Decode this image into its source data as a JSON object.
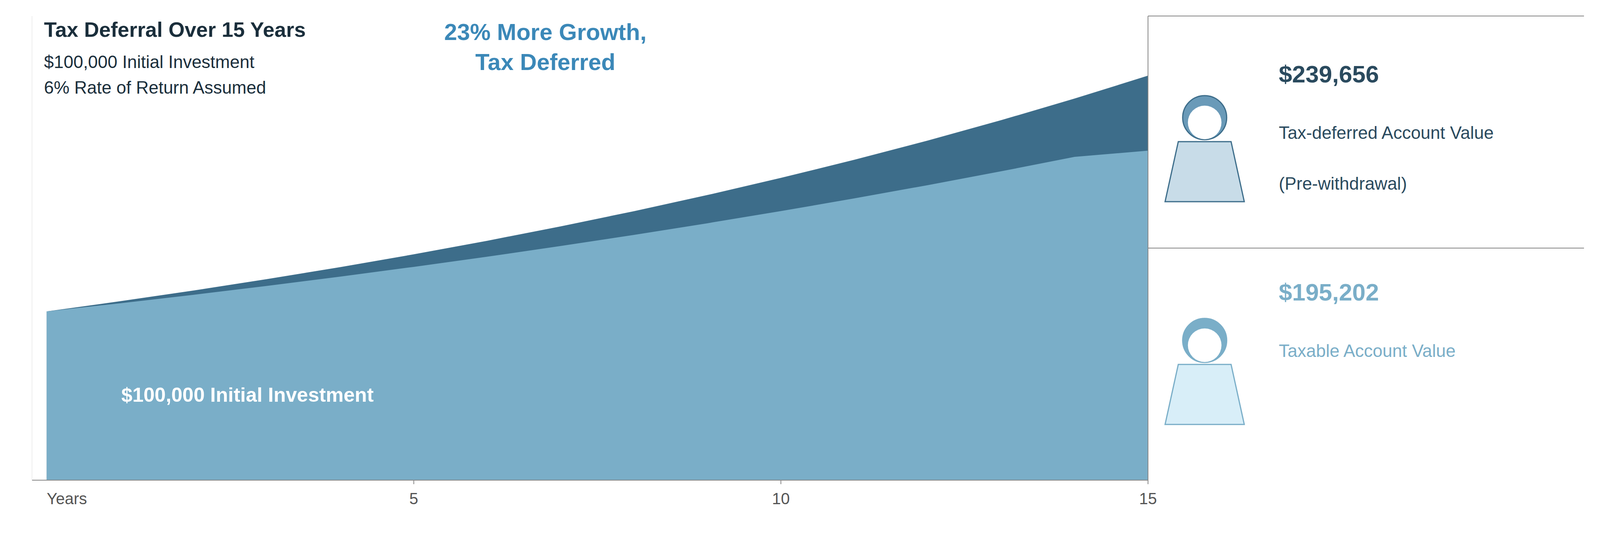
{
  "chart_data": {
    "type": "area",
    "title": "Tax Deferral Over 15 Years",
    "subtitle": [
      "$100,000 Initial Investment",
      "6% Rate of Return Assumed"
    ],
    "x_label": "Years",
    "x": [
      0,
      1,
      2,
      3,
      4,
      5,
      6,
      7,
      8,
      9,
      10,
      11,
      12,
      13,
      14,
      15
    ],
    "series": [
      {
        "color": "#7aaec8",
        "values": [
          100000,
          104800,
          109830,
          115097,
          120610,
          126378,
          132412,
          138724,
          145322,
          152218,
          159422,
          166946,
          174800,
          182998,
          191550,
          195202
        ]
      },
      {
        "color": "#3d6d8a",
        "values": [
          100000,
          106000,
          112360,
          119102,
          126248,
          133823,
          141852,
          150363,
          159385,
          168948,
          179085,
          189830,
          201220,
          213293,
          226090,
          239656
        ]
      }
    ],
    "xlim": [
      -0.2,
      15.0
    ],
    "xticks": [
      5,
      10,
      15
    ],
    "ylim": [
      0,
      275000
    ],
    "tick_labels": "x",
    "grid": false,
    "annotations": [
      {
        "text": "23% More Growth,",
        "color": "#3b88b8"
      },
      {
        "text": "Tax Deferred",
        "color": "#3b88b8"
      },
      {
        "text": "$100,000 Initial Investment",
        "color": "#ffffff"
      },
      {
        "text": "$239,656",
        "color": "#2a4a5e"
      },
      {
        "text": "Tax-deferred Account Value",
        "color": "#2a4a5e"
      },
      {
        "text": "(Pre-withdrawal)",
        "color": "#2a4a5e"
      },
      {
        "text": "$195,202",
        "color": "#7aaec8"
      },
      {
        "text": "Taxable Account Value",
        "color": "#7aaec8"
      }
    ]
  }
}
